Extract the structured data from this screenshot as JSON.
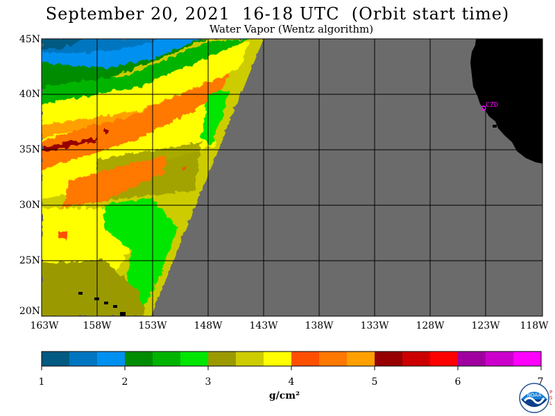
{
  "title": "September 20, 2021  16-18 UTC  (Orbit start time)",
  "subtitle": "Water Vapor (Wentz algorithm)",
  "map": {
    "lat_labels": [
      "45N",
      "40N",
      "35N",
      "30N",
      "25N",
      "20N"
    ],
    "lon_labels": [
      "163W",
      "158W",
      "153W",
      "148W",
      "143W",
      "138W",
      "133W",
      "128W",
      "123W",
      "118W"
    ],
    "lat_range": [
      20,
      45
    ],
    "lon_range": [
      -163,
      -118
    ],
    "station_label": "CZD",
    "colors": {
      "no_data": "#6b6b6b",
      "land": "#000000",
      "grid": "#000000",
      "station": "#ff00ff"
    }
  },
  "colorbar": {
    "tick_labels": [
      "1",
      "2",
      "3",
      "4",
      "5",
      "6",
      "7"
    ],
    "units": "g/cm²",
    "range": [
      1,
      7
    ],
    "colors": [
      "#005a82",
      "#0076c0",
      "#0090f0",
      "#008c00",
      "#00b400",
      "#00e600",
      "#9a9a00",
      "#cccc00",
      "#ffff00",
      "#ff5000",
      "#ff7800",
      "#ffa000",
      "#960000",
      "#cc0000",
      "#ff0000",
      "#a000a0",
      "#cc00cc",
      "#ff00ff"
    ]
  },
  "logo": {
    "icon": "noaa-logo-icon",
    "text": "NOAA",
    "side_text": "PSL"
  }
}
